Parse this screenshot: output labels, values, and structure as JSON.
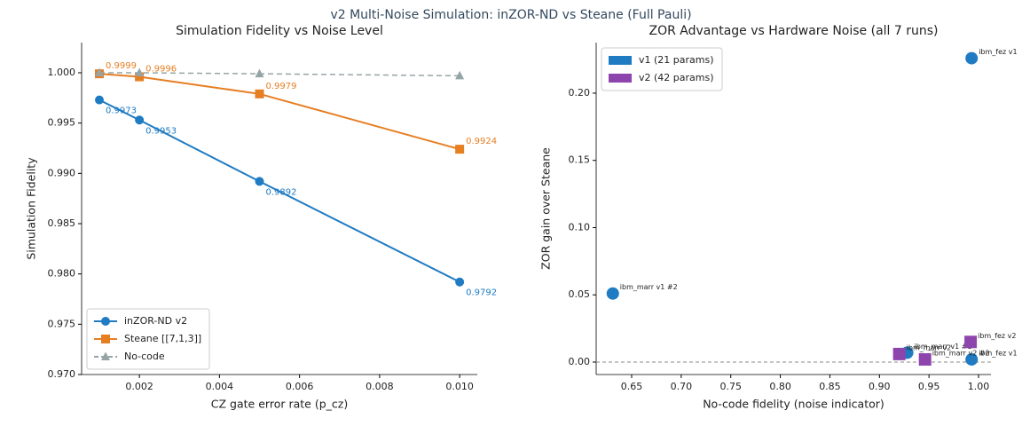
{
  "title": "v2 Multi-Noise Simulation: inZOR-ND vs Steane (Full Pauli)",
  "chart_data": [
    {
      "type": "line",
      "title": "Simulation Fidelity vs Noise Level",
      "x_label": "CZ gate error rate (p_cz)",
      "y_label": "Simulation Fidelity",
      "x": [
        0.001,
        0.002,
        0.005,
        0.01
      ],
      "series": [
        {
          "name": "inZOR-ND v2",
          "color": "#1f7bc2",
          "marker": "circle",
          "dashed": false,
          "show_values": true,
          "values": [
            0.9973,
            0.9953,
            0.9892,
            0.9792
          ]
        },
        {
          "name": "Steane [[7,1,3]]",
          "color": "#e67e22",
          "marker": "square",
          "dashed": false,
          "show_values": true,
          "values": [
            0.9999,
            0.9996,
            0.9979,
            0.9924
          ]
        },
        {
          "name": "No-code",
          "color": "#95a5a6",
          "marker": "triangle",
          "dashed": true,
          "show_values": false,
          "values": [
            1.0,
            1.0,
            0.9999,
            0.9997
          ]
        }
      ],
      "xlim": [
        0.000557,
        0.01044
      ],
      "xticks": [
        0.002,
        0.004,
        0.006,
        0.008,
        {
          "value": 0.01,
          "label": "0.010"
        }
      ],
      "ylim": [
        0.97,
        1.003
      ],
      "yticks": [
        {
          "value": 0.97,
          "label": "0.970"
        },
        0.975,
        {
          "value": 0.98,
          "label": "0.980"
        },
        0.985,
        {
          "value": 0.99,
          "label": "0.990"
        },
        0.995,
        {
          "value": 1.0,
          "label": "1.000"
        }
      ],
      "legend": "lower left"
    },
    {
      "type": "scatter",
      "title": "ZOR Advantage vs Hardware Noise (all 7 runs)",
      "x_label": "No-code fidelity (noise indicator)",
      "y_label": "ZOR gain over Steane",
      "series": [
        {
          "name": "v1 (21 params)",
          "color": "#1f7bc2",
          "marker": "circle",
          "x": [
            0.993,
            0.631,
            0.928,
            0.993
          ],
          "values": [
            0.226,
            0.051,
            0.007,
            0.002
          ],
          "labels": [
            "ibm_fez v1",
            "ibm_marr v1 #2",
            "ibm_marr v1 #1",
            "ibm_fez v1"
          ]
        },
        {
          "name": "v2 (42 params)",
          "color": "#8e44ad",
          "marker": "square",
          "x": [
            0.992,
            0.92,
            0.946
          ],
          "values": [
            0.015,
            0.006,
            0.002
          ],
          "labels": [
            "ibm_fez v2",
            "ibm_marr v2",
            "ibm_marr v2 #2"
          ]
        }
      ],
      "xlim": [
        0.6142,
        1.0125
      ],
      "xticks": [
        0.65,
        {
          "value": 0.7,
          "label": "0.70"
        },
        0.75,
        {
          "value": 0.8,
          "label": "0.80"
        },
        0.85,
        {
          "value": 0.9,
          "label": "0.90"
        },
        0.95,
        {
          "value": 1.0,
          "label": "1.00"
        }
      ],
      "ylim": [
        -0.00924,
        0.2376
      ],
      "yticks": [
        {
          "value": 0,
          "label": "0.00"
        },
        0.05,
        {
          "value": 0.1,
          "label": "0.10"
        },
        0.15,
        {
          "value": 0.2,
          "label": "0.20"
        }
      ],
      "reference_line": 0,
      "legend": "upper left"
    }
  ]
}
